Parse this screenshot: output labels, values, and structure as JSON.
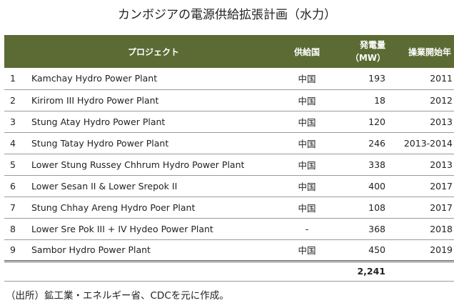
{
  "title": "カンボジアの電源供給拡張計画（水力）",
  "table": {
    "headers": {
      "no": "",
      "project": "プロジェクト",
      "country": "供給国",
      "capacity_line1": "発電量",
      "capacity_line2": "（MW）",
      "start_year": "操業開始年"
    },
    "rows": [
      {
        "no": "1",
        "project": "Kamchay Hydro Power Plant",
        "country": "中国",
        "capacity": "193",
        "year": "2011"
      },
      {
        "no": "2",
        "project": "Kirirom III Hydro Power Plant",
        "country": "中国",
        "capacity": "18",
        "year": "2012"
      },
      {
        "no": "3",
        "project": "Stung Atay Hydro Power Plant",
        "country": "中国",
        "capacity": "120",
        "year": "2013"
      },
      {
        "no": "4",
        "project": "Stung Tatay Hydro Power Plant",
        "country": "中国",
        "capacity": "246",
        "year": "2013-2014"
      },
      {
        "no": "5",
        "project": "Lower Stung Russey Chhrum Hydro Power Plant",
        "country": "中国",
        "capacity": "338",
        "year": "2013"
      },
      {
        "no": "6",
        "project": "Lower Sesan II & Lower Srepok II",
        "country": "中国",
        "capacity": "400",
        "year": "2017"
      },
      {
        "no": "7",
        "project": "Stung Chhay Areng Hydro Poer Plant",
        "country": "中国",
        "capacity": "108",
        "year": "2017"
      },
      {
        "no": "8",
        "project": "Lower Sre Pok III + IV Hydeo Power Plant",
        "country": "-",
        "capacity": "368",
        "year": "2018"
      },
      {
        "no": "9",
        "project": "Sambor Hydro Power Plant",
        "country": "中国",
        "capacity": "450",
        "year": "2019"
      }
    ],
    "total": {
      "capacity": "2,241"
    }
  },
  "source": "（出所）鉱工業・エネルギー省、CDCを元に作成。",
  "colors": {
    "header_bg": "#5b6b33",
    "header_text": "#ffffff"
  }
}
